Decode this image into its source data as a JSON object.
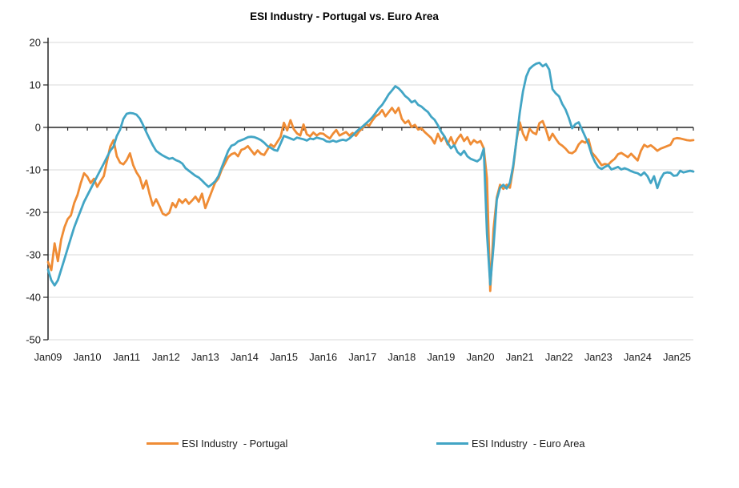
{
  "chart_data": {
    "type": "line",
    "title": "ESI Industry - Portugal vs. Euro Area",
    "frequency": "monthly",
    "x_start": "2009-01",
    "x_end": "2025-06",
    "x_tick_labels": [
      "Jan09",
      "Jan10",
      "Jan11",
      "Jan12",
      "Jan13",
      "Jan14",
      "Jan15",
      "Jan16",
      "Jan17",
      "Jan18",
      "Jan19",
      "Jan20",
      "Jan21",
      "Jan22",
      "Jan23",
      "Jan24",
      "Jan25"
    ],
    "x_tick_interval_months": 12,
    "minor_tick_interval_months": 6,
    "ylim": [
      -50,
      20
    ],
    "y_ticks": [
      20,
      10,
      0,
      -10,
      -20,
      -30,
      -40,
      -50
    ],
    "grid": "horizontal",
    "grid_color": "#d9d9d9",
    "axis_color": "#262626",
    "background": "#ffffff",
    "legend_position": "bottom",
    "series": [
      {
        "name": "ESI Industry  - Portugal",
        "color": "#EF8C35",
        "values": [
          -31.7,
          -33.6,
          -27.3,
          -31.5,
          -26.4,
          -23.5,
          -21.6,
          -20.7,
          -17.8,
          -15.9,
          -13.1,
          -10.8,
          -11.6,
          -13.1,
          -12.1,
          -14.0,
          -12.7,
          -11.5,
          -8.0,
          -4.5,
          -3.0,
          -6.8,
          -8.3,
          -8.7,
          -7.7,
          -6.1,
          -8.9,
          -10.6,
          -11.8,
          -14.4,
          -12.5,
          -15.7,
          -18.4,
          -16.9,
          -18.5,
          -20.3,
          -20.7,
          -20.1,
          -17.8,
          -18.8,
          -16.9,
          -17.8,
          -16.9,
          -18.0,
          -17.2,
          -16.3,
          -17.5,
          -15.6,
          -19.0,
          -17.0,
          -15.0,
          -13.0,
          -12.0,
          -10.0,
          -8.5,
          -7.0,
          -6.3,
          -6.0,
          -6.8,
          -5.3,
          -5.0,
          -4.4,
          -5.4,
          -6.4,
          -5.4,
          -6.2,
          -6.5,
          -5.2,
          -4.0,
          -4.6,
          -3.4,
          -2.2,
          1.1,
          -0.7,
          1.7,
          -0.4,
          -1.4,
          -1.9,
          0.7,
          -1.6,
          -2.1,
          -1.2,
          -1.9,
          -1.4,
          -1.5,
          -2.1,
          -2.6,
          -1.5,
          -0.6,
          -1.9,
          -1.5,
          -1.1,
          -1.9,
          -1.3,
          -2.0,
          -0.9,
          -0.2,
          0.8,
          0.4,
          1.6,
          2.6,
          3.1,
          4.1,
          2.6,
          3.6,
          4.6,
          3.4,
          4.6,
          2.0,
          1.0,
          1.6,
          0.1,
          0.6,
          -0.5,
          -0.2,
          -1.1,
          -1.8,
          -2.5,
          -3.8,
          -1.5,
          -3.2,
          -2.1,
          -4.0,
          -2.3,
          -4.2,
          -2.7,
          -1.7,
          -3.2,
          -2.3,
          -4.0,
          -3.0,
          -3.6,
          -3.2,
          -4.9,
          -12.0,
          -38.5,
          -24.0,
          -16.5,
          -13.5,
          -14.5,
          -13.5,
          -14.2,
          -9.5,
          -3.0,
          1.2,
          -1.5,
          -3.0,
          -0.3,
          -1.2,
          -1.6,
          1.0,
          1.5,
          -0.5,
          -3.0,
          -1.5,
          -2.7,
          -3.8,
          -4.3,
          -5.0,
          -5.9,
          -6.1,
          -5.5,
          -4.0,
          -3.2,
          -3.6,
          -2.8,
          -5.9,
          -6.8,
          -7.8,
          -8.9,
          -8.6,
          -8.8,
          -8.0,
          -7.4,
          -6.3,
          -6.0,
          -6.5,
          -7.0,
          -6.2,
          -7.0,
          -7.8,
          -5.5,
          -4.1,
          -4.6,
          -4.2,
          -4.8,
          -5.5,
          -5.0,
          -4.7,
          -4.4,
          -4.1,
          -2.7,
          -2.5,
          -2.6,
          -2.8,
          -3.0,
          -3.1,
          -3.0
        ]
      },
      {
        "name": "ESI Industry  - Euro Area",
        "color": "#42A5C5",
        "values": [
          -33.5,
          -36.0,
          -37.2,
          -36.0,
          -33.5,
          -31.0,
          -28.5,
          -26.0,
          -23.5,
          -21.5,
          -19.5,
          -17.5,
          -16.0,
          -14.5,
          -13.0,
          -11.5,
          -10.0,
          -8.5,
          -7.0,
          -5.5,
          -4.5,
          -2.0,
          -0.5,
          2.0,
          3.2,
          3.4,
          3.3,
          3.0,
          2.1,
          0.6,
          -1.1,
          -2.7,
          -4.2,
          -5.5,
          -6.1,
          -6.6,
          -7.0,
          -7.4,
          -7.2,
          -7.7,
          -8.0,
          -8.5,
          -9.6,
          -10.2,
          -10.8,
          -11.4,
          -11.8,
          -12.5,
          -13.3,
          -14.0,
          -13.4,
          -12.7,
          -11.5,
          -9.5,
          -7.5,
          -5.5,
          -4.3,
          -4.0,
          -3.3,
          -3.0,
          -2.7,
          -2.3,
          -2.2,
          -2.3,
          -2.6,
          -3.0,
          -3.6,
          -4.4,
          -4.8,
          -5.3,
          -5.5,
          -3.8,
          -2.0,
          -2.3,
          -2.6,
          -2.9,
          -2.4,
          -2.6,
          -2.8,
          -3.1,
          -2.6,
          -2.8,
          -2.4,
          -2.6,
          -2.8,
          -3.3,
          -3.4,
          -3.1,
          -3.4,
          -3.1,
          -2.9,
          -3.1,
          -2.6,
          -1.9,
          -1.1,
          -0.4,
          0.2,
          0.9,
          1.6,
          2.4,
          3.4,
          4.5,
          5.3,
          6.5,
          7.8,
          8.7,
          9.7,
          9.2,
          8.4,
          7.4,
          6.8,
          5.9,
          6.3,
          5.3,
          4.9,
          4.2,
          3.6,
          2.5,
          1.8,
          0.5,
          -1.0,
          -2.1,
          -3.6,
          -4.9,
          -4.2,
          -5.8,
          -6.5,
          -5.5,
          -6.8,
          -7.4,
          -7.7,
          -8.0,
          -7.4,
          -5.0,
          -25.0,
          -37.0,
          -28.0,
          -17.0,
          -14.2,
          -13.5,
          -14.4,
          -13.0,
          -9.0,
          -3.0,
          3.5,
          8.5,
          12.0,
          13.8,
          14.5,
          15.0,
          15.2,
          14.4,
          14.9,
          13.6,
          9.0,
          8.0,
          7.3,
          5.5,
          4.2,
          2.2,
          -0.2,
          0.8,
          1.2,
          -0.5,
          -2.2,
          -4.0,
          -6.5,
          -8.2,
          -9.4,
          -9.8,
          -9.3,
          -8.9,
          -9.9,
          -9.6,
          -9.3,
          -9.9,
          -9.6,
          -9.9,
          -10.3,
          -10.6,
          -10.8,
          -11.3,
          -10.6,
          -11.5,
          -13.1,
          -11.5,
          -14.3,
          -12.1,
          -10.8,
          -10.6,
          -10.7,
          -11.4,
          -11.3,
          -10.2,
          -10.6,
          -10.4,
          -10.2,
          -10.4
        ]
      }
    ]
  }
}
